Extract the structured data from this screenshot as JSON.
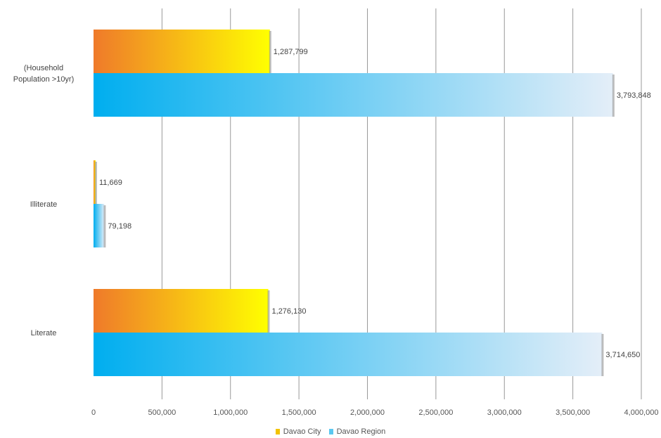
{
  "chart_data": {
    "type": "bar",
    "orientation": "horizontal",
    "categories": [
      "(Household Population >10yr)",
      "Illiterate",
      "Literate"
    ],
    "category_lines": [
      [
        "(Household",
        "Population >10yr)"
      ],
      [
        "Illiterate"
      ],
      [
        "Literate"
      ]
    ],
    "series": [
      {
        "name": "Davao City",
        "values": [
          1287799,
          11669,
          1276130
        ],
        "labels": [
          "1,287,799",
          "11,669",
          "1,276,130"
        ],
        "gradient": [
          "#ef7a2a",
          "#ffff00"
        ]
      },
      {
        "name": "Davao Region",
        "values": [
          3793848,
          79198,
          3714650
        ],
        "labels": [
          "3,793,848",
          "79,198",
          "3,714,650"
        ],
        "gradient": [
          "#00aeef",
          "#e4eef8"
        ]
      }
    ],
    "xlim": [
      0,
      4000000
    ],
    "xticks": [
      0,
      500000,
      1000000,
      1500000,
      2000000,
      2500000,
      3000000,
      3500000,
      4000000
    ],
    "xtick_labels": [
      "0",
      "500,000",
      "1,000,000",
      "1,500,000",
      "2,000,000",
      "2,500,000",
      "3,000,000",
      "3,500,000",
      "4,000,000"
    ],
    "grid": true,
    "legend_position": "bottom",
    "title": "",
    "xlabel": "",
    "ylabel": ""
  },
  "legend": {
    "davao_city": "Davao City",
    "davao_region": "Davao Region",
    "davao_city_color": "#f2c300",
    "davao_region_color": "#5bc8f0"
  }
}
